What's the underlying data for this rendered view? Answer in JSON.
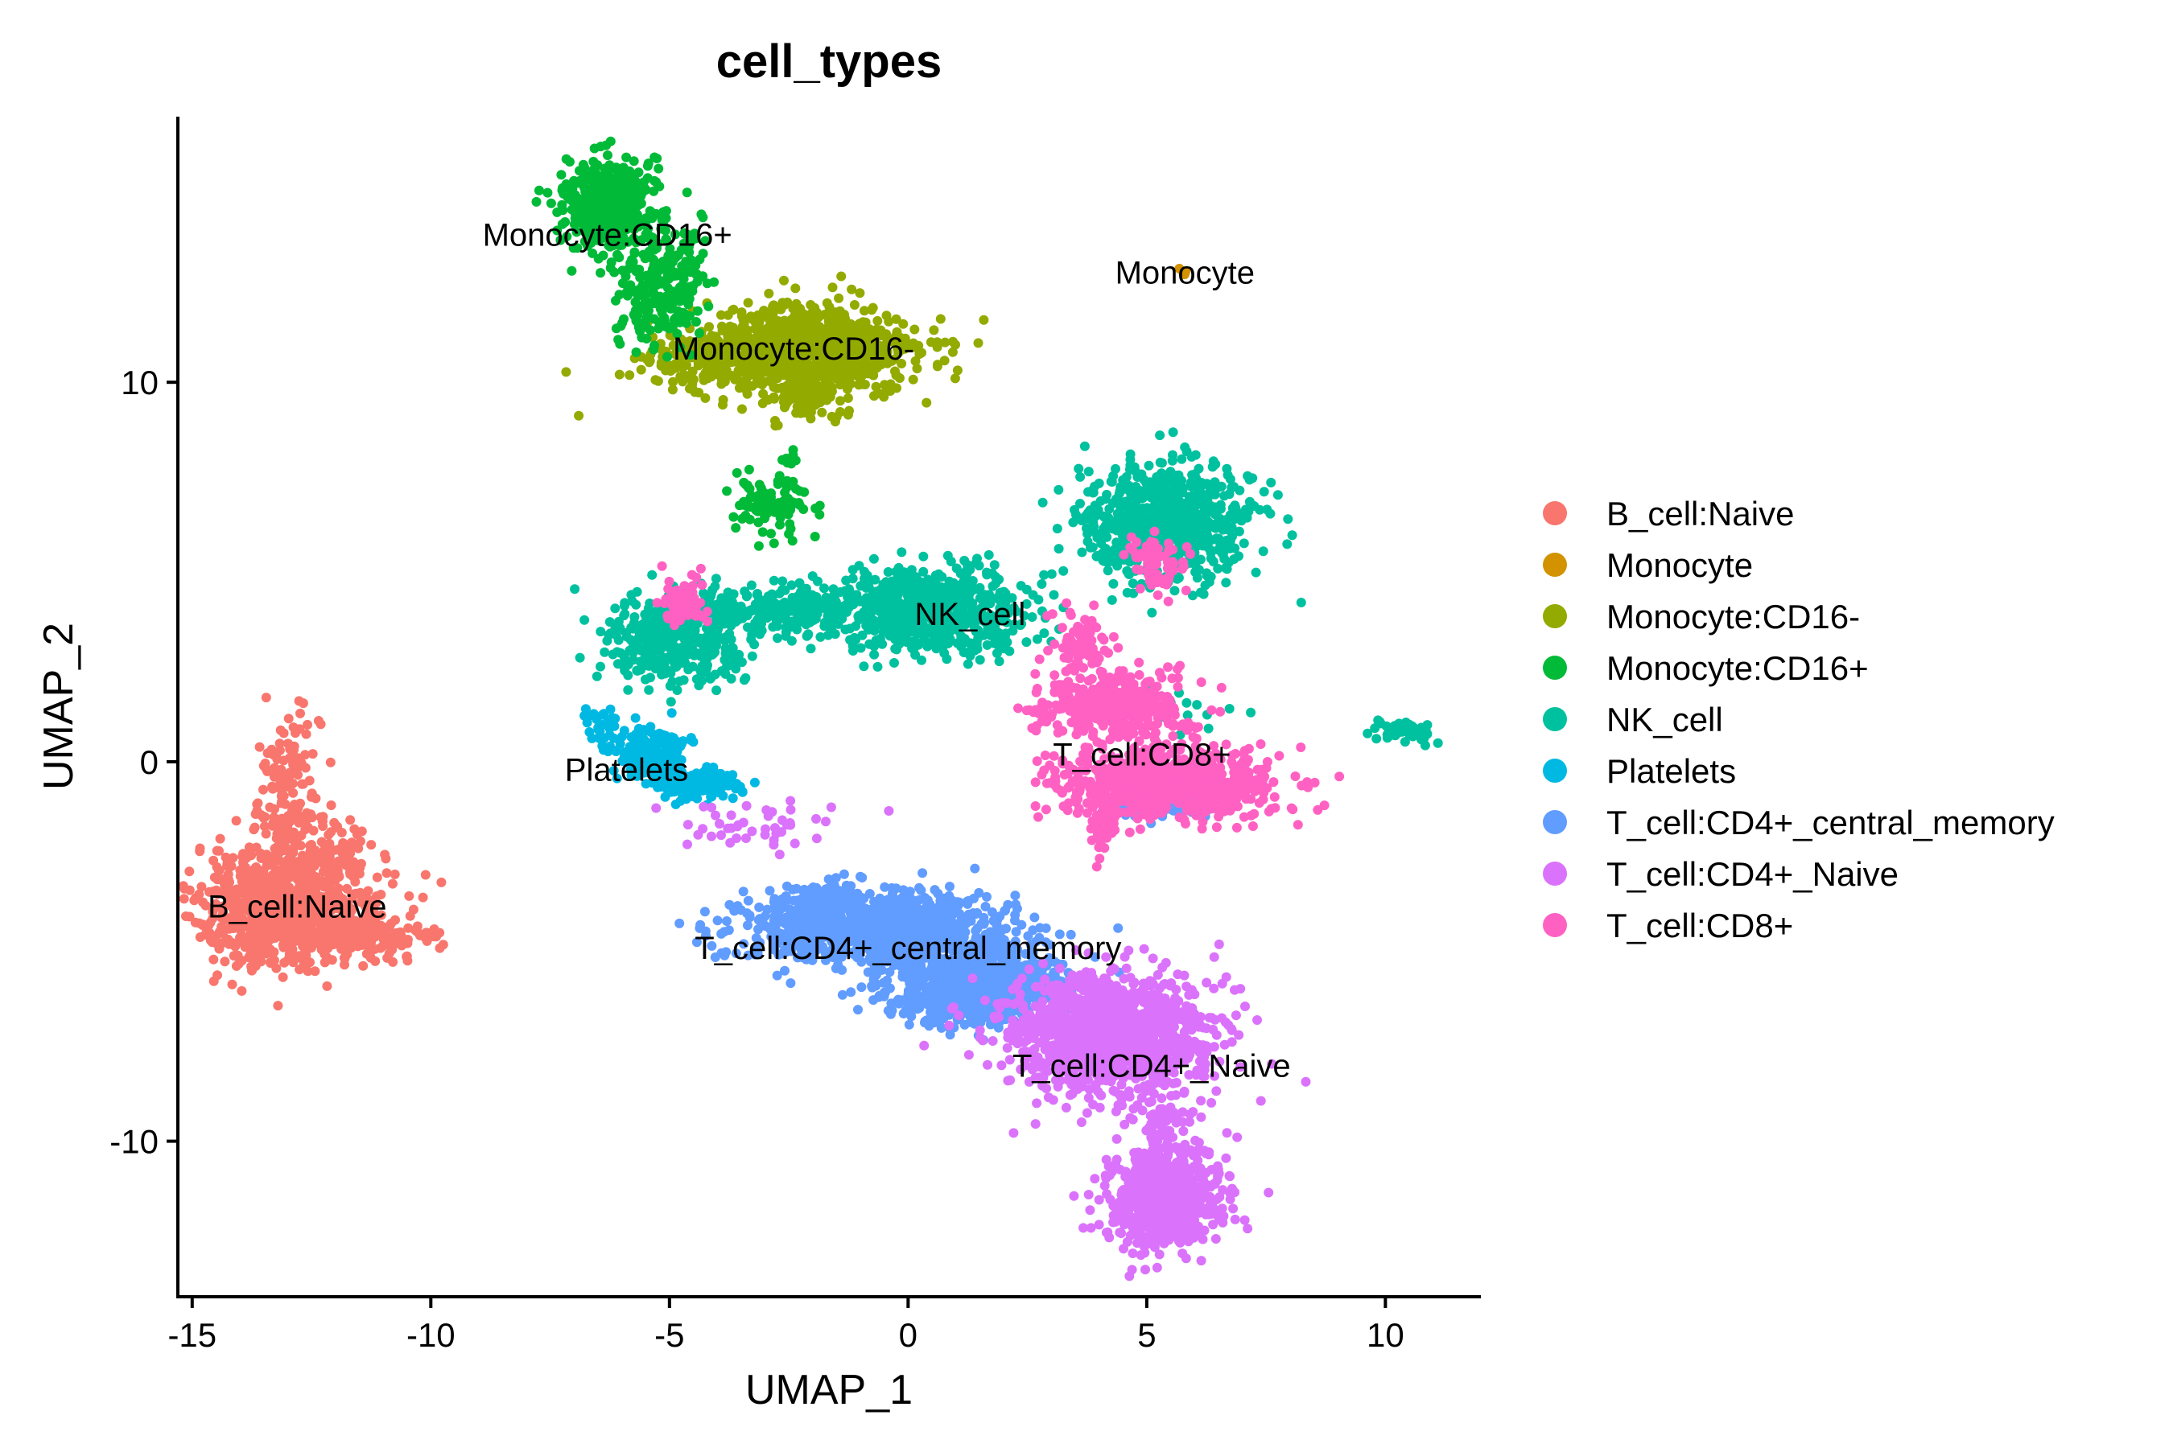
{
  "chart_data": {
    "type": "scatter",
    "title": "cell_types",
    "xlabel": "UMAP_1",
    "ylabel": "UMAP_2",
    "xlim": [
      -15.3,
      12.0
    ],
    "ylim": [
      -14.1,
      17.0
    ],
    "x_ticks": [
      -15,
      -10,
      -5,
      0,
      5,
      10
    ],
    "x_tick_labels": [
      "-15",
      "-10",
      "-5",
      "0",
      "5",
      "10"
    ],
    "y_ticks": [
      -10,
      0,
      10
    ],
    "y_tick_labels": [
      "-10",
      "0",
      "10"
    ],
    "grid": false,
    "legend": "right",
    "series": [
      {
        "name": "B_cell:Naive",
        "color": "#F8766D",
        "clusters": [
          {
            "cx": -13.0,
            "cy": -3.8,
            "sx": 1.0,
            "sy": 0.8,
            "n": 900
          },
          {
            "cx": -13.0,
            "cy": -1.0,
            "sx": 0.35,
            "sy": 1.1,
            "n": 160
          },
          {
            "cx": -11.2,
            "cy": -4.6,
            "sx": 0.7,
            "sy": 0.25,
            "n": 120
          },
          {
            "cx": -12.2,
            "cy": -2.5,
            "sx": 0.5,
            "sy": 0.4,
            "n": 80
          }
        ]
      },
      {
        "name": "Monocyte",
        "color": "#D39200",
        "clusters": [
          {
            "cx": 5.8,
            "cy": 12.9,
            "sx": 0.06,
            "sy": 0.06,
            "n": 4
          }
        ]
      },
      {
        "name": "Monocyte:CD16-",
        "color": "#93AA00",
        "clusters": [
          {
            "cx": -2.2,
            "cy": 10.8,
            "sx": 1.2,
            "sy": 0.6,
            "n": 1000
          },
          {
            "cx": -4.2,
            "cy": 10.6,
            "sx": 0.6,
            "sy": 0.25,
            "n": 140
          },
          {
            "cx": -2.2,
            "cy": 9.6,
            "sx": 0.4,
            "sy": 0.3,
            "n": 60
          }
        ]
      },
      {
        "name": "Monocyte:CD16+",
        "color": "#00BA38",
        "clusters": [
          {
            "cx": -6.3,
            "cy": 14.7,
            "sx": 0.45,
            "sy": 0.6,
            "n": 450
          },
          {
            "cx": -5.2,
            "cy": 12.6,
            "sx": 0.45,
            "sy": 0.8,
            "n": 260
          },
          {
            "cx": -2.8,
            "cy": 6.8,
            "sx": 0.4,
            "sy": 0.4,
            "n": 90
          },
          {
            "cx": -2.5,
            "cy": 7.9,
            "sx": 0.1,
            "sy": 0.2,
            "n": 8
          }
        ]
      },
      {
        "name": "NK_cell",
        "color": "#00C19F",
        "clusters": [
          {
            "cx": 0.6,
            "cy": 4.0,
            "sx": 1.0,
            "sy": 0.55,
            "n": 600
          },
          {
            "cx": -2.5,
            "cy": 4.0,
            "sx": 1.2,
            "sy": 0.3,
            "n": 320
          },
          {
            "cx": -4.9,
            "cy": 3.2,
            "sx": 0.7,
            "sy": 0.55,
            "n": 380
          },
          {
            "cx": 5.4,
            "cy": 6.3,
            "sx": 0.9,
            "sy": 0.8,
            "n": 650
          },
          {
            "cx": 10.4,
            "cy": 0.8,
            "sx": 0.35,
            "sy": 0.15,
            "n": 40
          },
          {
            "cx": 5.5,
            "cy": 1.5,
            "sx": 0.6,
            "sy": 0.3,
            "n": 25
          }
        ]
      },
      {
        "name": "Platelets",
        "color": "#00B9E3",
        "clusters": [
          {
            "cx": -5.4,
            "cy": 0.2,
            "sx": 0.35,
            "sy": 0.35,
            "n": 200
          },
          {
            "cx": -4.5,
            "cy": -0.6,
            "sx": 0.45,
            "sy": 0.2,
            "n": 150
          },
          {
            "cx": -6.4,
            "cy": 0.9,
            "sx": 0.2,
            "sy": 0.3,
            "n": 30
          }
        ]
      },
      {
        "name": "T_cell:CD4+_central_memory",
        "color": "#619CFF",
        "clusters": [
          {
            "cx": -0.7,
            "cy": -4.4,
            "sx": 1.4,
            "sy": 0.45,
            "n": 1000
          },
          {
            "cx": 1.3,
            "cy": -5.9,
            "sx": 1.0,
            "sy": 0.5,
            "n": 700
          },
          {
            "cx": 5.3,
            "cy": -1.2,
            "sx": 0.5,
            "sy": 0.15,
            "n": 60
          },
          {
            "cx": -1.8,
            "cy": -3.6,
            "sx": 0.6,
            "sy": 0.2,
            "n": 80
          }
        ]
      },
      {
        "name": "T_cell:CD4+_Naive",
        "color": "#DB72FB",
        "clusters": [
          {
            "cx": 4.2,
            "cy": -7.2,
            "sx": 1.1,
            "sy": 0.8,
            "n": 1200
          },
          {
            "cx": 5.3,
            "cy": -11.5,
            "sx": 0.6,
            "sy": 0.7,
            "n": 650
          },
          {
            "cx": 5.3,
            "cy": -9.6,
            "sx": 0.3,
            "sy": 0.4,
            "n": 60
          },
          {
            "cx": -3.0,
            "cy": -1.6,
            "sx": 1.1,
            "sy": 0.3,
            "n": 45
          }
        ]
      },
      {
        "name": "T_cell:CD8+",
        "color": "#FF61C3",
        "clusters": [
          {
            "cx": 5.4,
            "cy": -0.6,
            "sx": 1.1,
            "sy": 0.45,
            "n": 800
          },
          {
            "cx": 4.3,
            "cy": 1.4,
            "sx": 0.8,
            "sy": 0.45,
            "n": 400
          },
          {
            "cx": 3.6,
            "cy": 3.0,
            "sx": 0.3,
            "sy": 0.5,
            "n": 80
          },
          {
            "cx": 5.2,
            "cy": 5.2,
            "sx": 0.35,
            "sy": 0.35,
            "n": 70
          },
          {
            "cx": -4.7,
            "cy": 4.2,
            "sx": 0.25,
            "sy": 0.35,
            "n": 70
          },
          {
            "cx": 4.1,
            "cy": -1.8,
            "sx": 0.15,
            "sy": 0.5,
            "n": 30
          }
        ]
      }
    ],
    "annotations": [
      {
        "text": "Monocyte:CD16+",
        "x": -6.3,
        "y": 13.6
      },
      {
        "text": "Monocyte",
        "x": 5.8,
        "y": 12.6
      },
      {
        "text": "Monocyte:CD16-",
        "x": -2.4,
        "y": 10.6
      },
      {
        "text": "NK_cell",
        "x": 1.3,
        "y": 3.6
      },
      {
        "text": "T_cell:CD8+",
        "x": 4.9,
        "y": -0.1
      },
      {
        "text": "Platelets",
        "x": -5.9,
        "y": -0.5
      },
      {
        "text": "B_cell:Naive",
        "x": -12.8,
        "y": -4.1
      },
      {
        "text": "T_cell:CD4+_central_memory",
        "x": 0.0,
        "y": -5.2
      },
      {
        "text": "T_cell:CD4+_Naive",
        "x": 5.1,
        "y": -8.3
      }
    ]
  }
}
